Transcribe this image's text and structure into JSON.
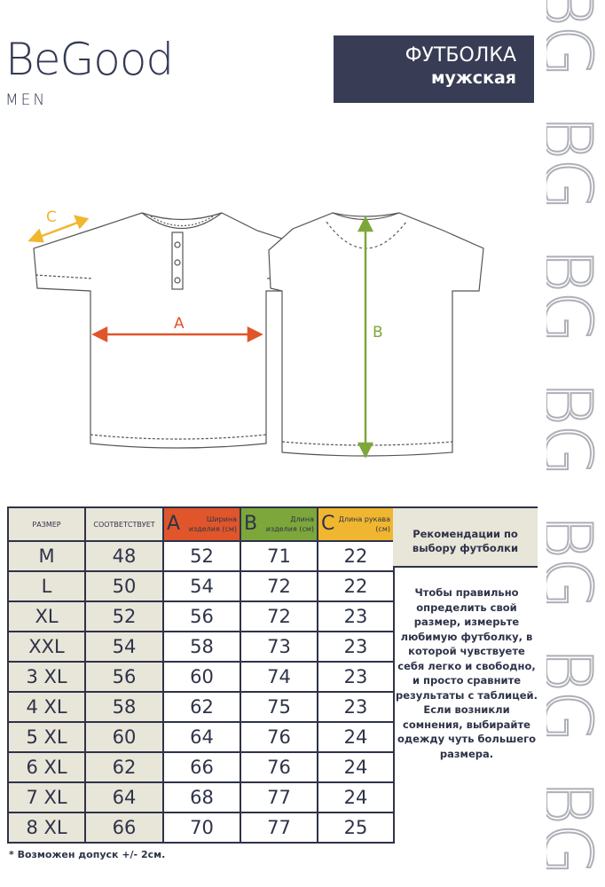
{
  "brand": {
    "name": "BeGood",
    "sub": "MEN",
    "watermark": "BG"
  },
  "title": {
    "line1": "ФУТБОЛКА",
    "line2": "мужская"
  },
  "measures": {
    "a": "A",
    "b": "B",
    "c": "C"
  },
  "colors": {
    "a": "#e0562a",
    "b": "#7da73b",
    "c": "#f1b630",
    "navy": "#383d55",
    "beige": "#e8e5d9"
  },
  "table": {
    "headers": {
      "size": "РАЗМЕР",
      "corresponds": "СООТВЕТСТВУЕТ",
      "a_letter": "A",
      "a_label": "Ширина изделия (см)",
      "b_letter": "B",
      "b_label": "Длина изделия (см)",
      "c_letter": "C",
      "c_label": "Длина рукава (см)"
    },
    "rows": [
      [
        "M",
        "48",
        "52",
        "71",
        "22"
      ],
      [
        "L",
        "50",
        "54",
        "72",
        "22"
      ],
      [
        "XL",
        "52",
        "56",
        "72",
        "23"
      ],
      [
        "XXL",
        "54",
        "58",
        "73",
        "23"
      ],
      [
        "3 XL",
        "56",
        "60",
        "74",
        "23"
      ],
      [
        "4 XL",
        "58",
        "62",
        "75",
        "23"
      ],
      [
        "5 XL",
        "60",
        "64",
        "76",
        "24"
      ],
      [
        "6 XL",
        "62",
        "66",
        "76",
        "24"
      ],
      [
        "7 XL",
        "64",
        "68",
        "77",
        "24"
      ],
      [
        "8 XL",
        "66",
        "70",
        "77",
        "25"
      ]
    ]
  },
  "recommendation": {
    "title": "Рекомендации по выбору футболки",
    "text": "Чтобы правильно определить свой размер, измерьте любимую футболку, в которой чувствуете себя легко и свободно, и просто сравните результаты с таблицей. Если возникли сомнения, выбирайте одежду чуть большего размера."
  },
  "note": "* Возможен допуск +/- 2см."
}
